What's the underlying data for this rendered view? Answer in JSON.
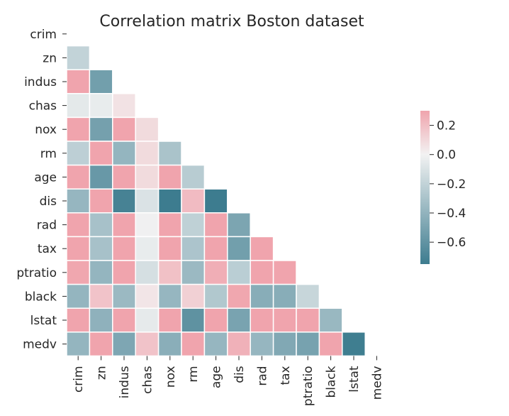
{
  "chart_data": {
    "type": "heatmap",
    "title": "Correlation matrix Boston dataset",
    "variables": [
      "crim",
      "zn",
      "indus",
      "chas",
      "nox",
      "rm",
      "age",
      "dis",
      "rad",
      "tax",
      "ptratio",
      "black",
      "lstat",
      "medv"
    ],
    "triangle": "lower",
    "values": [
      [],
      [
        -0.2
      ],
      [
        0.41,
        -0.53
      ],
      [
        -0.06,
        -0.04,
        0.06
      ],
      [
        0.42,
        -0.52,
        0.76,
        0.09
      ],
      [
        -0.22,
        0.31,
        -0.39,
        0.09,
        -0.3
      ],
      [
        0.35,
        -0.57,
        0.64,
        0.09,
        0.73,
        -0.24
      ],
      [
        -0.38,
        0.66,
        -0.71,
        -0.1,
        -0.77,
        0.21,
        -0.75
      ],
      [
        0.63,
        -0.31,
        0.6,
        -0.01,
        0.61,
        -0.21,
        0.46,
        -0.49
      ],
      [
        0.58,
        -0.31,
        0.72,
        -0.04,
        0.67,
        -0.29,
        0.51,
        -0.53,
        0.91
      ],
      [
        0.29,
        -0.39,
        0.38,
        -0.12,
        0.19,
        -0.36,
        0.26,
        -0.23,
        0.46,
        0.46
      ],
      [
        -0.39,
        0.18,
        -0.36,
        0.05,
        -0.38,
        0.13,
        -0.27,
        0.29,
        -0.44,
        -0.44,
        -0.18
      ],
      [
        0.46,
        -0.41,
        0.6,
        -0.05,
        0.59,
        -0.61,
        0.6,
        -0.5,
        0.49,
        0.54,
        0.37,
        -0.37
      ],
      [
        -0.39,
        0.36,
        -0.48,
        0.18,
        -0.43,
        0.7,
        -0.38,
        0.25,
        -0.38,
        -0.47,
        -0.51,
        0.33,
        -0.74
      ]
    ],
    "colorbar": {
      "ticks": [
        "0.2",
        "0.0",
        "−0.2",
        "−0.4",
        "−0.6"
      ],
      "tick_values": [
        0.2,
        0.0,
        -0.2,
        -0.4,
        -0.6
      ],
      "vmin": -0.75,
      "vmax": 0.3
    },
    "colors": {
      "negative": "#3d7c8f",
      "center": "#f2f2f2",
      "positive": "#f0a4ad"
    }
  }
}
